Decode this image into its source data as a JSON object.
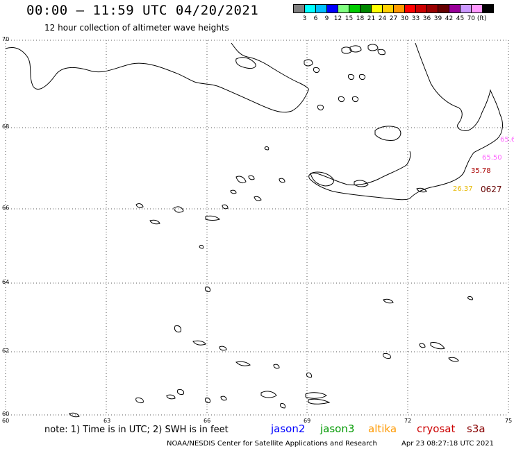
{
  "header": {
    "title": "00:00 – 11:59 UTC 04/20/2021",
    "subtitle": "12 hour collection of altimeter wave heights"
  },
  "legend": {
    "colors": [
      "#808080",
      "#00ffff",
      "#00bfff",
      "#0000ff",
      "#80ff80",
      "#00cc00",
      "#008800",
      "#ffff00",
      "#ffd000",
      "#ff9900",
      "#ff0000",
      "#cc0000",
      "#990000",
      "#660000",
      "#990099",
      "#cc99ff",
      "#ff99ff",
      "#000000"
    ],
    "labels": [
      "3",
      "6",
      "9",
      "12",
      "15",
      "18",
      "21",
      "24",
      "27",
      "30",
      "33",
      "36",
      "39",
      "42",
      "45",
      "70 (ft)"
    ]
  },
  "axes": {
    "y_labels": [
      "70",
      "68",
      "66",
      "64",
      "62",
      "60"
    ],
    "x_labels": [
      "60",
      "63",
      "66",
      "69",
      "72",
      "75"
    ]
  },
  "observations": [
    {
      "text": "65.6",
      "color": "#ff66ff"
    },
    {
      "text": "65.50",
      "color": "#ff66ff"
    },
    {
      "text": "35.78",
      "color": "#aa0000"
    },
    {
      "text": "26.37",
      "color": "#e6b800"
    },
    {
      "text": "0627",
      "color": "#660000"
    }
  ],
  "footer": {
    "note": "note: 1) Time is in UTC; 2) SWH is in feet",
    "satellites": [
      {
        "name": "jason2",
        "color": "#0000ff"
      },
      {
        "name": "jason3",
        "color": "#009900"
      },
      {
        "name": "altika",
        "color": "#ff9900"
      },
      {
        "name": "cryosat",
        "color": "#cc0000"
      },
      {
        "name": "s3a",
        "color": "#880000"
      }
    ],
    "credit": "NOAA/NESDIS Center for Satellite Applications and Research",
    "timestamp": "Apr 23 08:27:18 UTC 2021"
  }
}
